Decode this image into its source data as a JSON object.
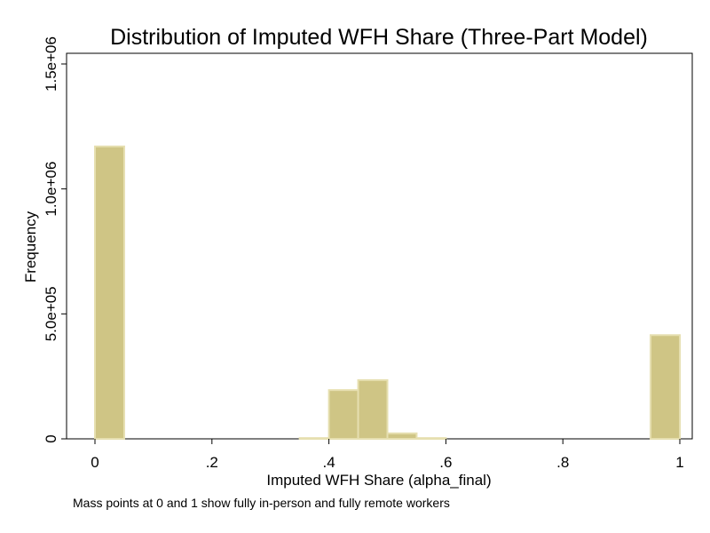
{
  "chart_data": {
    "type": "bar",
    "title": "Distribution of Imputed WFH Share (Three-Part Model)",
    "xlabel": "Imputed WFH Share (alpha_final)",
    "ylabel": "Frequency",
    "note": "Mass points at 0 and 1 show fully in-person and fully remote workers",
    "xlim": [
      -0.05,
      1.0
    ],
    "ylim": [
      0,
      1500000
    ],
    "x_ticks": [
      {
        "value": 0,
        "label": "0"
      },
      {
        "value": 0.2,
        "label": ".2"
      },
      {
        "value": 0.4,
        "label": ".4"
      },
      {
        "value": 0.6,
        "label": ".6"
      },
      {
        "value": 0.8,
        "label": ".8"
      },
      {
        "value": 1.0,
        "label": "1"
      }
    ],
    "y_ticks": [
      {
        "value": 0,
        "label": "0"
      },
      {
        "value": 500000,
        "label": "5.0e+05"
      },
      {
        "value": 1000000,
        "label": "1.0e+06"
      },
      {
        "value": 1500000,
        "label": "1.5e+06"
      }
    ],
    "bin_width": 0.05,
    "bins": [
      {
        "x0": 0.0,
        "value": 1170000
      },
      {
        "x0": 0.35,
        "value": 3000
      },
      {
        "x0": 0.4,
        "value": 195000
      },
      {
        "x0": 0.45,
        "value": 235000
      },
      {
        "x0": 0.5,
        "value": 22000
      },
      {
        "x0": 0.55,
        "value": 3000
      },
      {
        "x0": 0.95,
        "value": 415000
      }
    ],
    "grid": false,
    "bar_fill": "#CFC585",
    "bar_stroke": "#E6DFB0"
  }
}
